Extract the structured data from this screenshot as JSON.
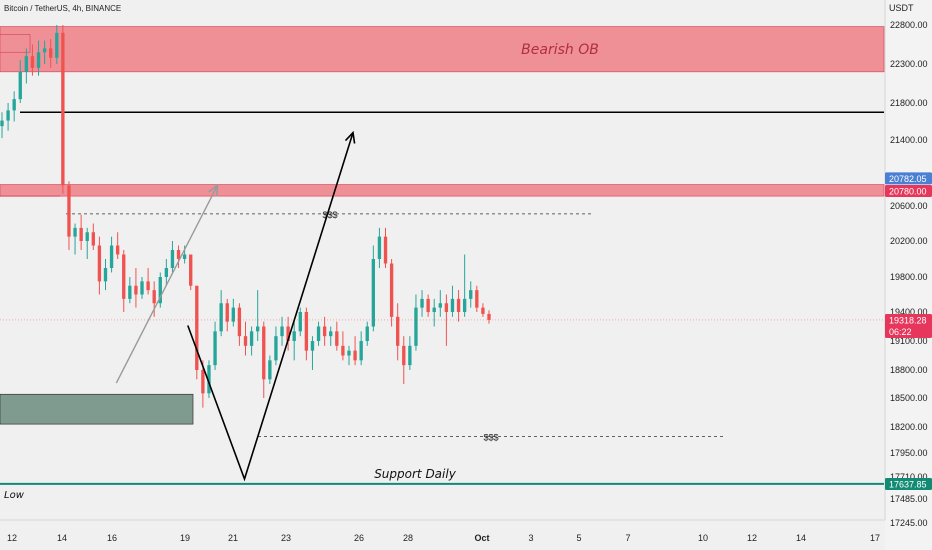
{
  "header": {
    "symbol_title": "Bitcoin / TetherUS, 4h, BINANCE"
  },
  "chart_data": {
    "type": "candlestick",
    "title": "Bitcoin / TetherUS, 4h, BINANCE",
    "currency_label": "USDT",
    "y_axis_ticks": [
      "22800.00",
      "22300.00",
      "21800.00",
      "21400.00",
      "20600.00",
      "20200.00",
      "19800.00",
      "19400.00",
      "19100.00",
      "18800.00",
      "18500.00",
      "18200.00",
      "17950.00",
      "17710.00",
      "17485.00",
      "17245.00"
    ],
    "x_axis_ticks": [
      "12",
      "14",
      "16",
      "19",
      "21",
      "23",
      "26",
      "28",
      "Oct",
      "3",
      "5",
      "7",
      "10",
      "12",
      "14",
      "17"
    ],
    "price_tags": [
      {
        "value": "20782.05",
        "color": "#4a7fd4"
      },
      {
        "value": "20780.00",
        "color": "#e6365b"
      },
      {
        "value": "19318.28",
        "color": "#e6365b",
        "countdown": "06:22"
      },
      {
        "value": "17637.85",
        "color": "#138a74"
      }
    ],
    "zones": [
      {
        "label": "Bearish OB",
        "color": "#ef8f96",
        "low": 22200,
        "high": 22780
      },
      {
        "label": "",
        "color": "#ef8f96",
        "low": 20720,
        "high": 20860
      },
      {
        "label": "",
        "color": "#7f9a8e",
        "low": 18230,
        "high": 18540
      }
    ],
    "levels": [
      {
        "name": "",
        "value": 21700,
        "color": "#000000",
        "style": "solid"
      },
      {
        "name": "Support Daily",
        "value": 17640,
        "color": "#138a74",
        "style": "solid"
      },
      {
        "name": "$$$",
        "value": 20510,
        "color": "#333333",
        "style": "dashed"
      },
      {
        "name": "$$$",
        "value": 18110,
        "color": "#333333",
        "style": "dashed"
      }
    ],
    "low_label": "Low",
    "projections": [
      {
        "color": "#000000",
        "path": [
          {
            "x": 19.1,
            "y": 19260
          },
          {
            "x": 21.4,
            "y": 17690
          },
          {
            "x": 25.8,
            "y": 21480
          }
        ]
      },
      {
        "color": "#9a9a9a",
        "path": [
          {
            "x": 16.2,
            "y": 18660
          },
          {
            "x": 20.3,
            "y": 20850
          }
        ]
      }
    ],
    "candles": [
      {
        "o": 21550,
        "h": 21700,
        "l": 21420,
        "c": 21610
      },
      {
        "o": 21610,
        "h": 21800,
        "l": 21500,
        "c": 21720
      },
      {
        "o": 21720,
        "h": 21950,
        "l": 21600,
        "c": 21850
      },
      {
        "o": 21850,
        "h": 22350,
        "l": 21800,
        "c": 22200
      },
      {
        "o": 22200,
        "h": 22500,
        "l": 22050,
        "c": 22400
      },
      {
        "o": 22400,
        "h": 22550,
        "l": 22150,
        "c": 22250
      },
      {
        "o": 22250,
        "h": 22600,
        "l": 22150,
        "c": 22450
      },
      {
        "o": 22450,
        "h": 22600,
        "l": 22300,
        "c": 22500
      },
      {
        "o": 22500,
        "h": 22620,
        "l": 22250,
        "c": 22380
      },
      {
        "o": 22380,
        "h": 22800,
        "l": 22300,
        "c": 22700
      },
      {
        "o": 22700,
        "h": 22800,
        "l": 20750,
        "c": 20850
      },
      {
        "o": 20850,
        "h": 20900,
        "l": 20100,
        "c": 20250
      },
      {
        "o": 20250,
        "h": 20400,
        "l": 20050,
        "c": 20350
      },
      {
        "o": 20350,
        "h": 20500,
        "l": 20100,
        "c": 20200
      },
      {
        "o": 20200,
        "h": 20350,
        "l": 20000,
        "c": 20300
      },
      {
        "o": 20300,
        "h": 20400,
        "l": 20100,
        "c": 20150
      },
      {
        "o": 20150,
        "h": 20250,
        "l": 19600,
        "c": 19750
      },
      {
        "o": 19750,
        "h": 20000,
        "l": 19650,
        "c": 19900
      },
      {
        "o": 19900,
        "h": 20250,
        "l": 19850,
        "c": 20150
      },
      {
        "o": 20150,
        "h": 20300,
        "l": 20000,
        "c": 20050
      },
      {
        "o": 20050,
        "h": 20100,
        "l": 19400,
        "c": 19550
      },
      {
        "o": 19550,
        "h": 19800,
        "l": 19500,
        "c": 19700
      },
      {
        "o": 19700,
        "h": 19900,
        "l": 19450,
        "c": 19600
      },
      {
        "o": 19600,
        "h": 19800,
        "l": 19550,
        "c": 19750
      },
      {
        "o": 19750,
        "h": 19900,
        "l": 19600,
        "c": 19650
      },
      {
        "o": 19650,
        "h": 19750,
        "l": 19350,
        "c": 19500
      },
      {
        "o": 19500,
        "h": 19850,
        "l": 19450,
        "c": 19800
      },
      {
        "o": 19800,
        "h": 20000,
        "l": 19700,
        "c": 19900
      },
      {
        "o": 19900,
        "h": 20200,
        "l": 19850,
        "c": 20100
      },
      {
        "o": 20100,
        "h": 20150,
        "l": 19900,
        "c": 20000
      },
      {
        "o": 20000,
        "h": 20150,
        "l": 19950,
        "c": 20050
      },
      {
        "o": 20050,
        "h": 20050,
        "l": 19650,
        "c": 19700
      },
      {
        "o": 19700,
        "h": 19700,
        "l": 18700,
        "c": 18800
      },
      {
        "o": 18800,
        "h": 18900,
        "l": 18400,
        "c": 18550
      },
      {
        "o": 18550,
        "h": 18900,
        "l": 18500,
        "c": 18850
      },
      {
        "o": 18850,
        "h": 19300,
        "l": 18800,
        "c": 19200
      },
      {
        "o": 19200,
        "h": 19650,
        "l": 19150,
        "c": 19500
      },
      {
        "o": 19500,
        "h": 19550,
        "l": 19200,
        "c": 19300
      },
      {
        "o": 19300,
        "h": 19550,
        "l": 19250,
        "c": 19450
      },
      {
        "o": 19450,
        "h": 19500,
        "l": 19050,
        "c": 19150
      },
      {
        "o": 19150,
        "h": 19300,
        "l": 18950,
        "c": 19050
      },
      {
        "o": 19050,
        "h": 19250,
        "l": 18950,
        "c": 19200
      },
      {
        "o": 19200,
        "h": 19650,
        "l": 19100,
        "c": 19250
      },
      {
        "o": 19250,
        "h": 19300,
        "l": 18500,
        "c": 18700
      },
      {
        "o": 18700,
        "h": 18950,
        "l": 18650,
        "c": 18900
      },
      {
        "o": 18900,
        "h": 19250,
        "l": 18850,
        "c": 19150
      },
      {
        "o": 19150,
        "h": 19350,
        "l": 19050,
        "c": 19250
      },
      {
        "o": 19250,
        "h": 19350,
        "l": 19000,
        "c": 19100
      },
      {
        "o": 19100,
        "h": 19300,
        "l": 18900,
        "c": 19200
      },
      {
        "o": 19200,
        "h": 19450,
        "l": 19150,
        "c": 19400
      },
      {
        "o": 19400,
        "h": 19450,
        "l": 18900,
        "c": 19000
      },
      {
        "o": 19000,
        "h": 19150,
        "l": 18800,
        "c": 19100
      },
      {
        "o": 19100,
        "h": 19300,
        "l": 19050,
        "c": 19250
      },
      {
        "o": 19250,
        "h": 19350,
        "l": 19050,
        "c": 19150
      },
      {
        "o": 19150,
        "h": 19250,
        "l": 19050,
        "c": 19200
      },
      {
        "o": 19200,
        "h": 19300,
        "l": 19000,
        "c": 19050
      },
      {
        "o": 19050,
        "h": 19200,
        "l": 18900,
        "c": 18950
      },
      {
        "o": 18950,
        "h": 19050,
        "l": 18850,
        "c": 19000
      },
      {
        "o": 19000,
        "h": 19150,
        "l": 18850,
        "c": 18900
      },
      {
        "o": 18900,
        "h": 19200,
        "l": 18850,
        "c": 19100
      },
      {
        "o": 19100,
        "h": 19300,
        "l": 19050,
        "c": 19250
      },
      {
        "o": 19250,
        "h": 20150,
        "l": 19200,
        "c": 20000
      },
      {
        "o": 20000,
        "h": 20350,
        "l": 19900,
        "c": 20250
      },
      {
        "o": 20250,
        "h": 20350,
        "l": 19900,
        "c": 19950
      },
      {
        "o": 19950,
        "h": 20000,
        "l": 19250,
        "c": 19350
      },
      {
        "o": 19350,
        "h": 19500,
        "l": 18900,
        "c": 19050
      },
      {
        "o": 19050,
        "h": 19150,
        "l": 18650,
        "c": 18850
      },
      {
        "o": 18850,
        "h": 19150,
        "l": 18800,
        "c": 19050
      },
      {
        "o": 19050,
        "h": 19600,
        "l": 19000,
        "c": 19450
      },
      {
        "o": 19450,
        "h": 19650,
        "l": 19350,
        "c": 19550
      },
      {
        "o": 19550,
        "h": 19600,
        "l": 19350,
        "c": 19400
      },
      {
        "o": 19400,
        "h": 19550,
        "l": 19250,
        "c": 19450
      },
      {
        "o": 19450,
        "h": 19650,
        "l": 19350,
        "c": 19500
      },
      {
        "o": 19500,
        "h": 19600,
        "l": 19050,
        "c": 19400
      },
      {
        "o": 19400,
        "h": 19700,
        "l": 19350,
        "c": 19550
      },
      {
        "o": 19550,
        "h": 19650,
        "l": 19300,
        "c": 19400
      },
      {
        "o": 19400,
        "h": 20050,
        "l": 19350,
        "c": 19550
      },
      {
        "o": 19550,
        "h": 19750,
        "l": 19450,
        "c": 19650
      },
      {
        "o": 19650,
        "h": 19700,
        "l": 19400,
        "c": 19450
      },
      {
        "o": 19450,
        "h": 19500,
        "l": 19350,
        "c": 19380
      },
      {
        "o": 19380,
        "h": 19420,
        "l": 19280,
        "c": 19318
      }
    ]
  }
}
